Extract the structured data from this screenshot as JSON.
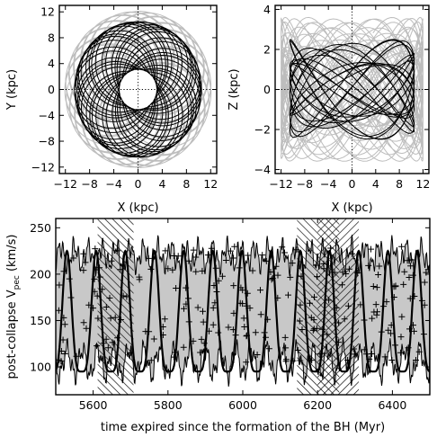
{
  "chart_data": [
    {
      "type": "line",
      "panel": "orbit-xy",
      "xlabel": "X (kpc)",
      "ylabel": "Y (kpc)",
      "xlim": [
        -13,
        13
      ],
      "ylim": [
        -13,
        13
      ],
      "xticks": [
        -12,
        -8,
        -4,
        0,
        4,
        8,
        12
      ],
      "yticks": [
        -12,
        -8,
        -4,
        0,
        4,
        8,
        12
      ],
      "xtick_labels": [
        "−12",
        "−8",
        "−4",
        "0",
        "4",
        "8",
        "12"
      ],
      "ytick_labels": [
        "−12",
        "−8",
        "−4",
        "0",
        "4",
        "8",
        "12"
      ],
      "grid": false,
      "reference_lines": "dotted lines at X=0 and Y=0",
      "series": [
        {
          "color": "#bdbdbd",
          "description": "rosette orbit, radius ~3.5 to ~12 kpc"
        },
        {
          "color": "#000000",
          "description": "rosette orbit, radius ~3 to ~10.5 kpc"
        }
      ]
    },
    {
      "type": "line",
      "panel": "orbit-xz",
      "xlabel": "X (kpc)",
      "ylabel": "Z (kpc)",
      "xlim": [
        -13,
        13
      ],
      "ylim": [
        -4.2,
        4.2
      ],
      "xticks": [
        -12,
        -8,
        -4,
        0,
        4,
        8,
        12
      ],
      "yticks": [
        -4,
        -2,
        0,
        2,
        4
      ],
      "xtick_labels": [
        "−12",
        "−8",
        "−4",
        "0",
        "4",
        "8",
        "12"
      ],
      "ytick_labels": [
        "−4",
        "−2",
        "0",
        "2",
        "4"
      ],
      "grid": false,
      "reference_lines": "dotted lines at X=0 and Z=0",
      "series": [
        {
          "color": "#bdbdbd",
          "description": "box orbit, |X|<=12, |Z|<=3.6"
        },
        {
          "color": "#000000",
          "description": "box orbit, |X|<=10.5, |Z|<=2.5"
        }
      ]
    },
    {
      "type": "area",
      "panel": "velocity-time",
      "xlabel": "time expired since the formation of the BH (Myr)",
      "ylabel_main": "post-collapse V",
      "ylabel_sub": "pec",
      "ylabel_unit": " (km/s)",
      "xlim": [
        5500,
        6500
      ],
      "ylim": [
        70,
        260
      ],
      "xticks": [
        5600,
        5800,
        6000,
        6200,
        6400
      ],
      "yticks": [
        100,
        150,
        200,
        250
      ],
      "grid": false,
      "envelope": {
        "color": "#c8c8c8",
        "upper_range": [
          195,
          245
        ],
        "lower_range": [
          75,
          135
        ]
      },
      "curve": {
        "color": "#000000",
        "min": 95,
        "max": 225,
        "period_myr": 78
      },
      "scatter": {
        "marker": "+",
        "color": "#000000",
        "range": [
          95,
          235
        ]
      },
      "hatched_intervals": [
        {
          "x0": 5612,
          "x1": 5708,
          "pattern": "forward"
        },
        {
          "x0": 6145,
          "x1": 6258,
          "pattern": "forward"
        },
        {
          "x0": 6200,
          "x1": 6310,
          "pattern": "backward"
        }
      ]
    }
  ]
}
